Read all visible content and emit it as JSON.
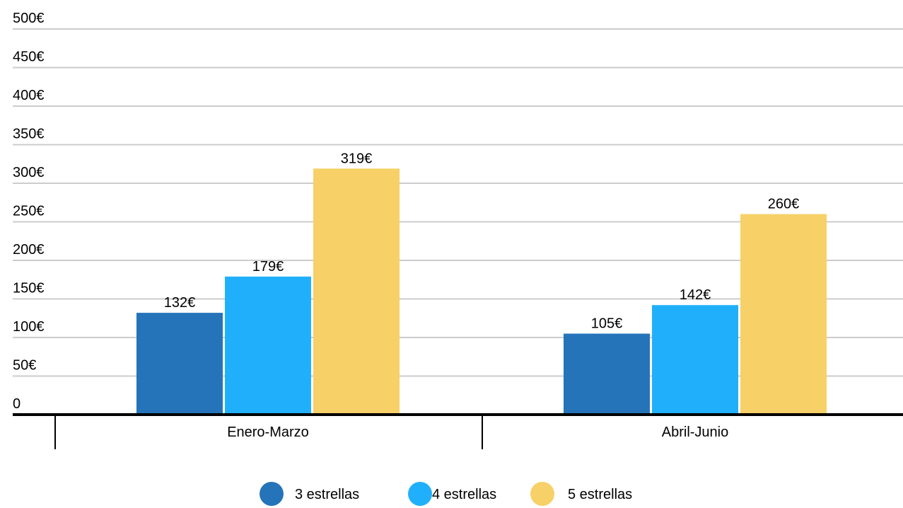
{
  "chart_data": {
    "type": "bar",
    "categories": [
      "Enero-Marzo",
      "Abril-Junio"
    ],
    "series": [
      {
        "name": "3 estrellas",
        "values": [
          132,
          105
        ],
        "labels": [
          "132€",
          "105€"
        ],
        "color": "#2574b9"
      },
      {
        "name": "4 estrellas",
        "values": [
          179,
          142
        ],
        "labels": [
          "179€",
          "142€"
        ],
        "color": "#20b0fb"
      },
      {
        "name": "5 estrellas",
        "values": [
          319,
          260
        ],
        "labels": [
          "319€",
          "260€"
        ],
        "color": "#f7d067"
      }
    ],
    "ylim": [
      0,
      500
    ],
    "yticks": [
      0,
      50,
      100,
      150,
      200,
      250,
      300,
      350,
      400,
      450,
      500
    ],
    "ytick_labels": [
      "0",
      "50€",
      "100€",
      "150€",
      "200€",
      "250€",
      "300€",
      "350€",
      "400€",
      "450€",
      "500€"
    ],
    "grid": true,
    "legend": "bottom-center"
  }
}
